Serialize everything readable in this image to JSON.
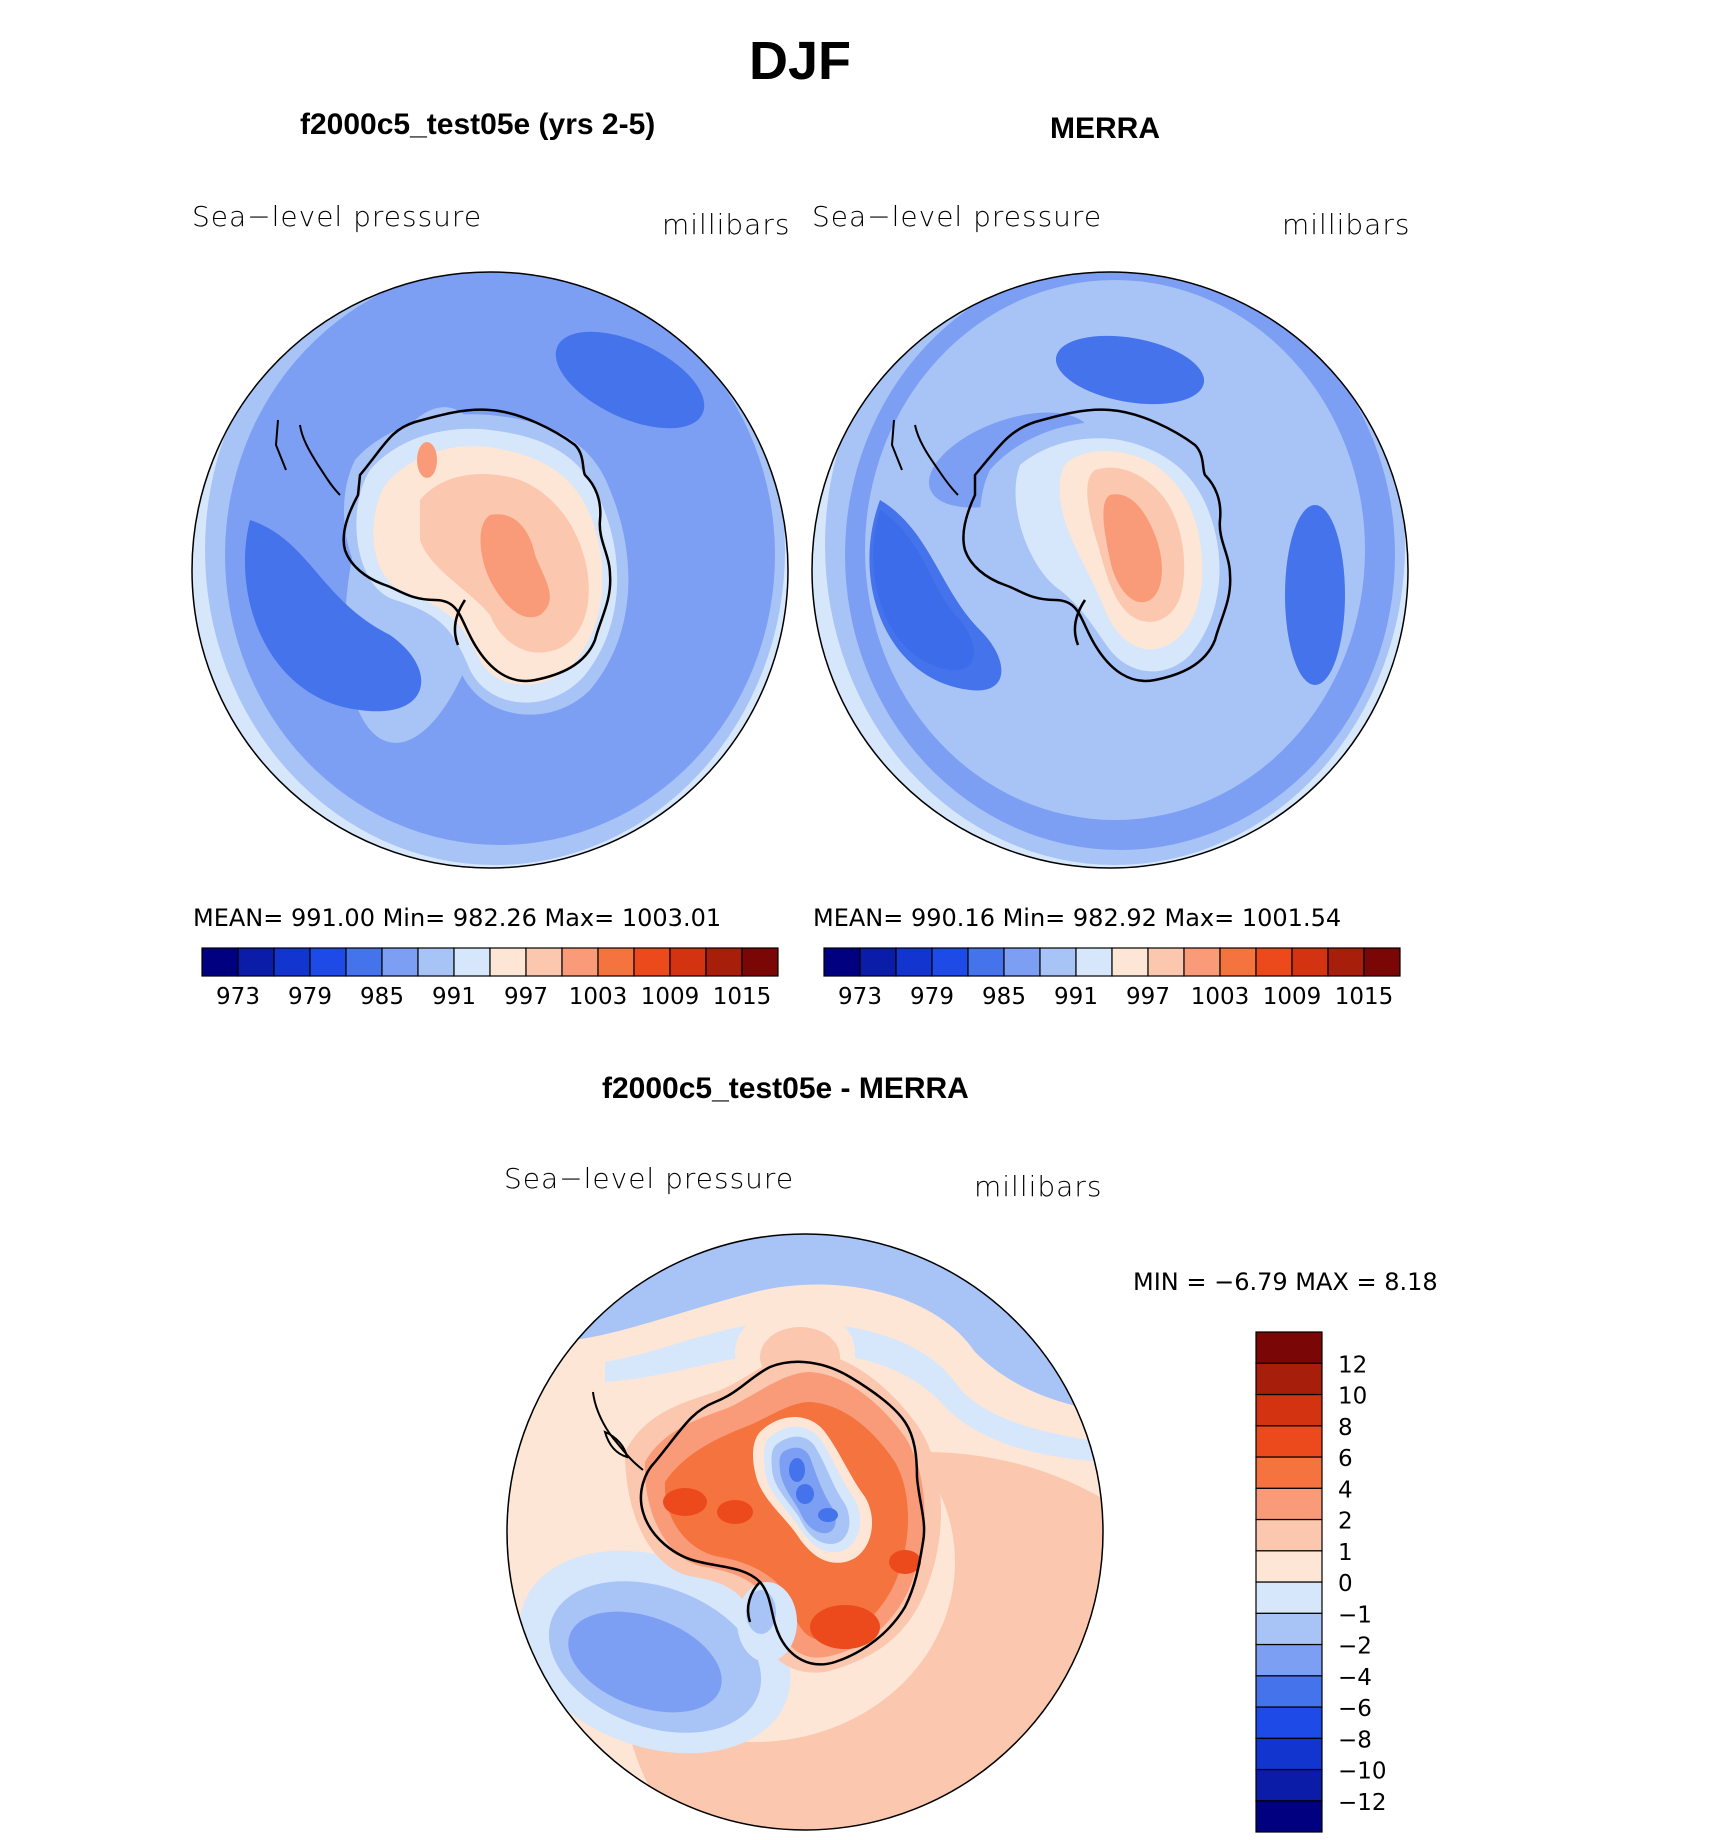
{
  "figure": {
    "season": "DJF",
    "panel_model": {
      "title": "f2000c5_test05e (yrs 2-5)",
      "variable": "Sea−level pressure",
      "units": "millibars",
      "stats": "MEAN= 991.00   Min= 982.26   Max= 1003.01"
    },
    "panel_obs": {
      "title": "MERRA",
      "variable": "Sea−level pressure",
      "units": "millibars",
      "stats": "MEAN= 990.16   Min= 982.92   Max= 1001.54"
    },
    "panel_diff": {
      "title": "f2000c5_test05e - MERRA",
      "variable": "Sea−level pressure",
      "units": "millibars",
      "minmax": "MIN =    −6.79  MAX =     8.18"
    }
  },
  "chart_data": [
    {
      "type": "map",
      "name": "model",
      "projection": "south polar stereographic",
      "field": "Sea-level pressure",
      "units": "millibars",
      "mean": 991.0,
      "min": 982.26,
      "max": 1003.01,
      "levels": [
        973,
        976,
        979,
        982,
        985,
        988,
        991,
        994,
        997,
        1000,
        1003,
        1006,
        1009,
        1012,
        1015
      ],
      "tick_labels": [
        "973",
        "979",
        "985",
        "991",
        "997",
        "1003",
        "1009",
        "1015"
      ],
      "colors": [
        "#000080",
        "#0a1ca8",
        "#1235cf",
        "#1e4be8",
        "#4473ec",
        "#7d9ff3",
        "#a8c3f6",
        "#d6e6fb",
        "#fde6d6",
        "#fbc7ae",
        "#f99b78",
        "#f4733e",
        "#ec4a1c",
        "#d43312",
        "#a71f0a",
        "#7b0606"
      ]
    },
    {
      "type": "map",
      "name": "obs",
      "projection": "south polar stereographic",
      "field": "Sea-level pressure",
      "units": "millibars",
      "mean": 990.16,
      "min": 982.92,
      "max": 1001.54,
      "levels": [
        973,
        976,
        979,
        982,
        985,
        988,
        991,
        994,
        997,
        1000,
        1003,
        1006,
        1009,
        1012,
        1015
      ],
      "tick_labels": [
        "973",
        "979",
        "985",
        "991",
        "997",
        "1003",
        "1009",
        "1015"
      ],
      "colors": [
        "#000080",
        "#0a1ca8",
        "#1235cf",
        "#1e4be8",
        "#4473ec",
        "#7d9ff3",
        "#a8c3f6",
        "#d6e6fb",
        "#fde6d6",
        "#fbc7ae",
        "#f99b78",
        "#f4733e",
        "#ec4a1c",
        "#d43312",
        "#a71f0a",
        "#7b0606"
      ]
    },
    {
      "type": "map",
      "name": "difference",
      "projection": "south polar stereographic",
      "field": "Sea-level pressure",
      "units": "millibars",
      "min": -6.79,
      "max": 8.18,
      "levels": [
        -12,
        -10,
        -8,
        -6,
        -4,
        -2,
        -1,
        0,
        1,
        2,
        4,
        6,
        8,
        10,
        12
      ],
      "tick_labels": [
        "−12",
        "−10",
        "−8",
        "−6",
        "−4",
        "−2",
        "−1",
        "0",
        "1",
        "2",
        "4",
        "6",
        "8",
        "10",
        "12"
      ],
      "colors": [
        "#000080",
        "#0a1ca8",
        "#1235cf",
        "#1e4be8",
        "#4473ec",
        "#7d9ff3",
        "#a8c3f6",
        "#d6e6fb",
        "#fde6d6",
        "#fbc7ae",
        "#f99b78",
        "#f4733e",
        "#ec4a1c",
        "#d43312",
        "#a71f0a",
        "#7b0606"
      ]
    }
  ]
}
